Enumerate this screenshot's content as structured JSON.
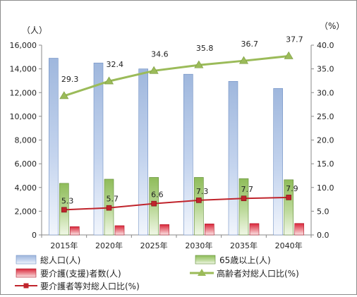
{
  "chart_data": {
    "type": "bar",
    "categories": [
      "2015年",
      "2020年",
      "2025年",
      "2030年",
      "2035年",
      "2040年"
    ],
    "y_left": {
      "unit_label": "（人）",
      "ylim": [
        0,
        16000
      ],
      "ticks": [
        "0",
        "2,000",
        "4,000",
        "6,000",
        "8,000",
        "10,000",
        "12,000",
        "14,000",
        "16,000"
      ]
    },
    "y_right": {
      "unit_label": "（%）",
      "ylim": [
        0,
        40
      ],
      "ticks": [
        "0.0",
        "5.0",
        "10.0",
        "15.0",
        "20.0",
        "25.0",
        "30.0",
        "35.0",
        "40.0"
      ]
    },
    "grid": false,
    "legend_position": "bottom",
    "bar_series": [
      {
        "name": "総人口(人)",
        "color": "#9fb7dd",
        "values": [
          14900,
          14500,
          14000,
          13550,
          12950,
          12350
        ]
      },
      {
        "name": "65歳以上(人)",
        "color": "#8fbc5a",
        "values": [
          4350,
          4700,
          4850,
          4850,
          4750,
          4650
        ]
      },
      {
        "name": "要介護(支援)者数(人)",
        "color": "#d9263a",
        "values": [
          700,
          780,
          880,
          930,
          960,
          970
        ]
      }
    ],
    "line_series": [
      {
        "name": "高齢者対総人口比(%)",
        "color": "#9bbb59",
        "marker": "triangle",
        "values": [
          29.3,
          32.4,
          34.6,
          35.8,
          36.7,
          37.7
        ],
        "labels": [
          "29.3",
          "32.4",
          "34.6",
          "35.8",
          "36.7",
          "37.7"
        ]
      },
      {
        "name": "要介護者等対総人口比(%)",
        "color": "#c0242c",
        "marker": "square",
        "values": [
          5.3,
          5.7,
          6.6,
          7.3,
          7.7,
          7.9
        ],
        "labels": [
          "5.3",
          "5.7",
          "6.6",
          "7.3",
          "7.7",
          "7.9"
        ]
      }
    ]
  }
}
